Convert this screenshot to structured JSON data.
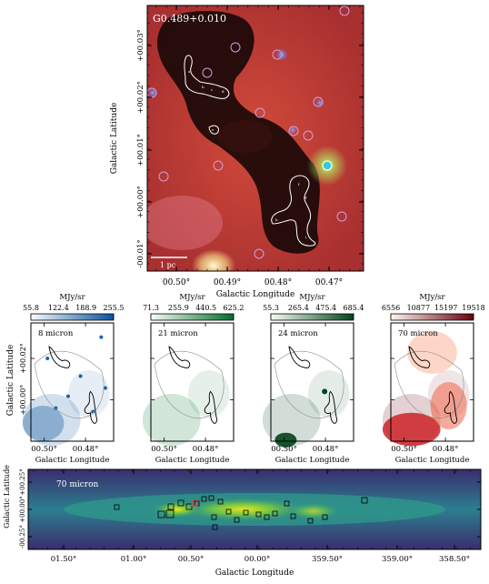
{
  "top_panel": {
    "title": "G0.489+0.010",
    "ylabel": "Galactic Latitude",
    "xlabel": "Galactic Longitude",
    "scalebar": "1 pc",
    "yticks": [
      "+00.03°",
      "+00.02°",
      "+00.01°",
      "+00.00°",
      "-00.01°"
    ],
    "xticks": [
      "00.50°",
      "00.49°",
      "00.48°",
      "00.47°"
    ]
  },
  "mid_panels": [
    {
      "name": "8 micron",
      "unit": "MJy/sr",
      "ticks": [
        "55.8",
        "122.4",
        "188.9",
        "255.5"
      ],
      "c0": "#ffffff",
      "c1": "#08519c"
    },
    {
      "name": "21 micron",
      "unit": "MJy/sr",
      "ticks": [
        "71.3",
        "255.9",
        "440.5",
        "625.2"
      ],
      "c0": "#ffffff",
      "c1": "#006d2c"
    },
    {
      "name": "24 micron",
      "unit": "MJy/sr",
      "ticks": [
        "55.3",
        "265.4",
        "475.4",
        "685.4"
      ],
      "c0": "#ffffff",
      "c1": "#00441b"
    },
    {
      "name": "70 micron",
      "unit": "MJy/sr",
      "ticks": [
        "6556",
        "10877",
        "15197",
        "19518"
      ],
      "c0": "#ffffff",
      "c1": "#67000d"
    }
  ],
  "mid_common": {
    "ylabel": "Galactic Latitude",
    "xlabel": "Galactic Longitude",
    "yticks": [
      "+00.02°",
      "+00.00°"
    ],
    "xticks": [
      "00.50°",
      "00.48°"
    ]
  },
  "bottom_panel": {
    "name": "70 micron",
    "ylabel": "Galactic Latitude",
    "xlabel": "Galactic Longitude",
    "yticks": [
      "+00.25°",
      "+00.00°",
      "-00.25°"
    ],
    "xticks": [
      "01.50°",
      "01.00°",
      "00.50°",
      "00.00°",
      "359.50°",
      "359.00°",
      "358.50°"
    ]
  },
  "chart_data": [
    {
      "type": "heatmap",
      "title": "G0.489+0.010",
      "xlabel": "Galactic Longitude",
      "ylabel": "Galactic Latitude",
      "xlim": [
        0.507,
        0.465
      ],
      "ylim": [
        -0.014,
        0.035
      ],
      "xticks": [
        0.5,
        0.49,
        0.48,
        0.47
      ],
      "yticks": [
        0.03,
        0.02,
        0.01,
        0.0,
        -0.01
      ],
      "colormap": "three-color composite (red/green/blue)"
    },
    {
      "type": "heatmap",
      "label": "8 micron",
      "colorbar_label": "MJy/sr",
      "colorbar_range": [
        55.8,
        255.5
      ],
      "colormap": "blues"
    },
    {
      "type": "heatmap",
      "label": "21 micron",
      "colorbar_label": "MJy/sr",
      "colorbar_range": [
        71.3,
        625.2
      ],
      "colormap": "greens"
    },
    {
      "type": "heatmap",
      "label": "24 micron",
      "colorbar_label": "MJy/sr",
      "colorbar_range": [
        55.3,
        685.4
      ],
      "colormap": "greens"
    },
    {
      "type": "heatmap",
      "label": "70 micron",
      "colorbar_label": "MJy/sr",
      "colorbar_range": [
        6556,
        19518
      ],
      "colormap": "reds"
    },
    {
      "type": "heatmap",
      "label": "70 micron",
      "xlabel": "Galactic Longitude",
      "ylabel": "Galactic Latitude",
      "xlim": [
        1.8,
        358.3
      ],
      "ylim": [
        -0.3,
        0.3
      ],
      "colormap": "viridis"
    }
  ]
}
